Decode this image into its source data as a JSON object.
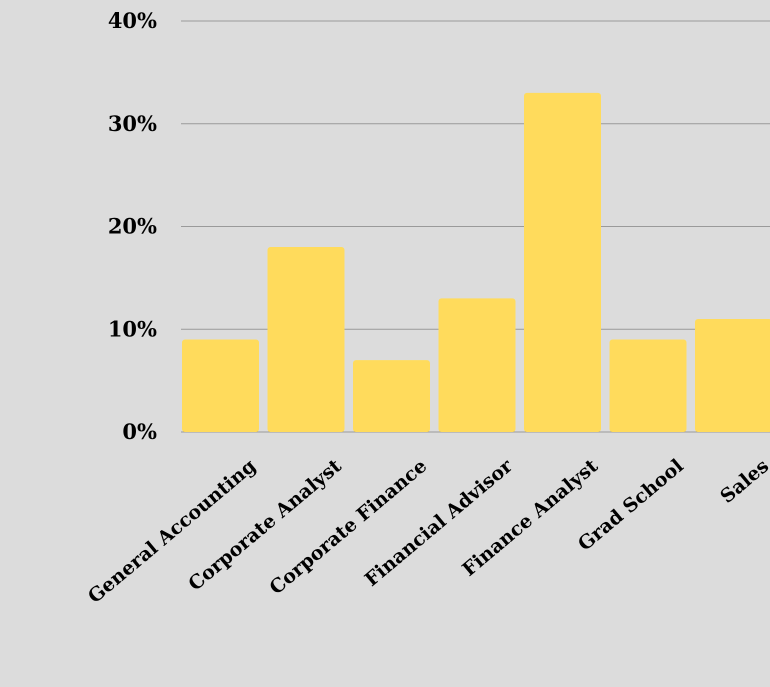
{
  "colors": {
    "background": "#dcdcdc",
    "bar": "#ffdb5c",
    "grid": "#9a9a9a",
    "text": "#000000"
  },
  "chart_data": {
    "type": "bar",
    "categories": [
      "General Accounting",
      "Corporate Analyst",
      "Corporate Finance",
      "Financial Advisor",
      "Finance Analyst",
      "Grad School",
      "Sales"
    ],
    "values": [
      9,
      18,
      7,
      13,
      33,
      9,
      11
    ],
    "y_ticks": [
      "0%",
      "10%",
      "20%",
      "30%",
      "40%"
    ],
    "ylim": [
      0,
      40
    ],
    "y_unit": "%",
    "grid": true,
    "legend": false
  }
}
